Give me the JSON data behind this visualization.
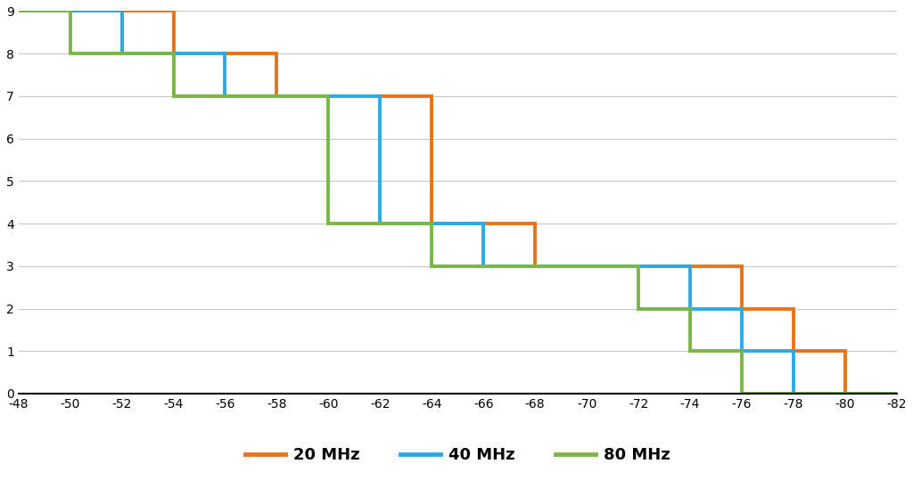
{
  "series_order": [
    "20 MHz",
    "40 MHz",
    "80 MHz"
  ],
  "series": {
    "20 MHz": {
      "color": "#E8731A",
      "x": [
        -48,
        -54,
        -54,
        -58,
        -58,
        -64,
        -64,
        -68,
        -68,
        -76,
        -76,
        -78,
        -78,
        -80,
        -80,
        -82
      ],
      "y": [
        9,
        9,
        8,
        8,
        7,
        7,
        4,
        4,
        3,
        3,
        2,
        2,
        1,
        1,
        0,
        0
      ]
    },
    "40 MHz": {
      "color": "#2AABE2",
      "x": [
        -48,
        -52,
        -52,
        -56,
        -56,
        -62,
        -62,
        -66,
        -66,
        -74,
        -74,
        -76,
        -76,
        -78,
        -78,
        -82
      ],
      "y": [
        9,
        9,
        8,
        8,
        7,
        7,
        4,
        4,
        3,
        3,
        2,
        2,
        1,
        1,
        0,
        0
      ]
    },
    "80 MHz": {
      "color": "#7AB648",
      "x": [
        -48,
        -50,
        -50,
        -54,
        -54,
        -60,
        -60,
        -64,
        -64,
        -72,
        -72,
        -74,
        -74,
        -76,
        -76,
        -82
      ],
      "y": [
        9,
        9,
        8,
        8,
        7,
        7,
        4,
        4,
        3,
        3,
        2,
        2,
        1,
        1,
        0,
        0
      ]
    }
  },
  "xlim_left": -48,
  "xlim_right": -82,
  "ylim": [
    0,
    9
  ],
  "xticks": [
    -48,
    -50,
    -52,
    -54,
    -56,
    -58,
    -60,
    -62,
    -64,
    -66,
    -68,
    -70,
    -72,
    -74,
    -76,
    -78,
    -80,
    -82
  ],
  "yticks": [
    0,
    1,
    2,
    3,
    4,
    5,
    6,
    7,
    8,
    9
  ],
  "legend_labels": [
    "20 MHz",
    "40 MHz",
    "80 MHz"
  ],
  "legend_colors": [
    "#E8731A",
    "#2AABE2",
    "#7AB648"
  ],
  "line_width": 2.8,
  "background_color": "#ffffff",
  "grid_color": "#c8c8c8"
}
